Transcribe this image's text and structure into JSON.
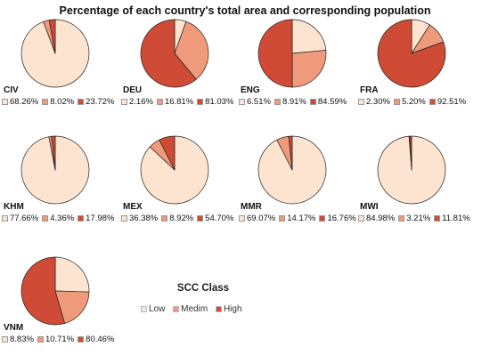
{
  "title": "Percentage of each country's total area and corresponding population",
  "legend": {
    "title": "SCC Class",
    "items": [
      {
        "label": "Low",
        "color": "#fde4d0"
      },
      {
        "label": "Medim",
        "color": "#ef9a7a"
      },
      {
        "label": "High",
        "color": "#cf4b35"
      }
    ]
  },
  "chart_data": {
    "type": "pie",
    "title": "Percentage of each country's total area and corresponding population",
    "categories": [
      "Low",
      "Medim",
      "High"
    ],
    "colors": [
      "#fde4d0",
      "#ef9a7a",
      "#cf4b35"
    ],
    "charts": [
      {
        "country": "CIV",
        "values": [
          68.26,
          8.02,
          23.72
        ],
        "labels": [
          "68.26%",
          "8.02%",
          "23.72%"
        ],
        "slices": [
          94.3,
          2.8,
          2.9
        ]
      },
      {
        "country": "DEU",
        "values": [
          2.16,
          16.81,
          81.03
        ],
        "labels": [
          "2.16%",
          "16.81%",
          "81.03%"
        ],
        "slices": [
          5.5,
          33.5,
          61.0
        ]
      },
      {
        "country": "ENG",
        "values": [
          6.51,
          8.91,
          84.59
        ],
        "labels": [
          "6.51%",
          "8.91%",
          "84.59%"
        ],
        "slices": [
          23.5,
          26.5,
          50.0
        ]
      },
      {
        "country": "FRA",
        "values": [
          2.3,
          5.2,
          92.51
        ],
        "labels": [
          "2.30%",
          "5.20%",
          "92.51%"
        ],
        "slices": [
          9.0,
          10.5,
          80.5
        ]
      },
      {
        "country": "KHM",
        "values": [
          77.66,
          4.36,
          17.98
        ],
        "labels": [
          "77.66%",
          "4.36%",
          "17.98%"
        ],
        "slices": [
          97.0,
          1.2,
          1.8
        ]
      },
      {
        "country": "MEX",
        "values": [
          36.38,
          8.92,
          54.7
        ],
        "labels": [
          "36.38%",
          "8.92%",
          "54.70%"
        ],
        "slices": [
          87.0,
          5.5,
          7.5
        ]
      },
      {
        "country": "MMR",
        "values": [
          69.07,
          14.17,
          16.76
        ],
        "labels": [
          "69.07%",
          "14.17%",
          "16.76%"
        ],
        "slices": [
          92.5,
          5.8,
          1.7
        ]
      },
      {
        "country": "MWI",
        "values": [
          84.98,
          3.21,
          11.81
        ],
        "labels": [
          "84.98%",
          "3.21%",
          "11.81%"
        ],
        "slices": [
          98.8,
          0.3,
          0.9
        ]
      },
      {
        "country": "VNM",
        "values": [
          8.83,
          10.71,
          80.46
        ],
        "labels": [
          "8.83%",
          "10.71%",
          "80.46%"
        ],
        "slices": [
          25.5,
          20.0,
          54.5
        ]
      }
    ]
  }
}
